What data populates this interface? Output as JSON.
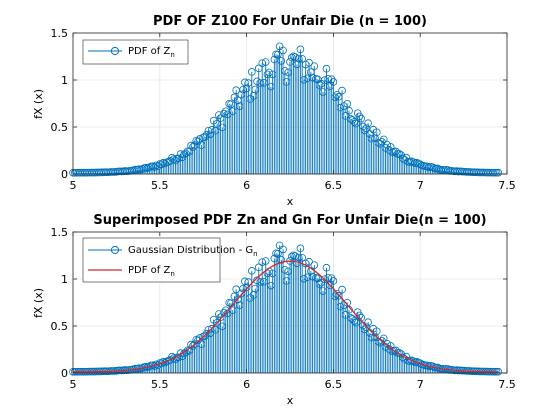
{
  "figure": {
    "background": "#ffffff"
  },
  "colors": {
    "stem": "#0072bd",
    "curve": "#d62728",
    "axis": "#262626",
    "grid": "#e6e6e6"
  },
  "chart_data": [
    {
      "type": "stem",
      "title": "PDF OF Z100 For Unfair Die (n = 100)",
      "xlabel": "x",
      "ylabel": "fX (x)",
      "xlim": [
        5,
        7.5
      ],
      "ylim": [
        0,
        1.5
      ],
      "xticks": [
        "5",
        "5.5",
        "6",
        "6.5",
        "7",
        "7.5"
      ],
      "yticks": [
        "0",
        "0.5",
        "1",
        "1.5"
      ],
      "grid": true,
      "legend_position": "top-left",
      "legend": [
        {
          "marker": "stem-circle",
          "text": "PDF of Z",
          "sub": "n"
        }
      ],
      "gaussian": {
        "mean": 6.25,
        "sd": 0.33,
        "peak": 1.18
      },
      "samples": {
        "x_start": 5.0,
        "x_end": 7.45,
        "step": 0.01
      }
    },
    {
      "type": "stem+line",
      "title": "Superimposed PDF Zn and Gn For Unfair Die(n = 100)",
      "xlabel": "x",
      "ylabel": "fX (x)",
      "xlim": [
        5,
        7.5
      ],
      "ylim": [
        0,
        1.5
      ],
      "xticks": [
        "5",
        "5.5",
        "6",
        "6.5",
        "7",
        "7.5"
      ],
      "yticks": [
        "0",
        "0.5",
        "1",
        "1.5"
      ],
      "grid": true,
      "legend_position": "top-left",
      "legend": [
        {
          "marker": "stem-circle",
          "text": "Gaussian Distribution - G",
          "sub": "n"
        },
        {
          "marker": "line",
          "text": "PDF of Z",
          "sub": "n"
        }
      ],
      "gaussian": {
        "mean": 6.25,
        "sd": 0.33,
        "peak": 1.18
      },
      "samples": {
        "x_start": 5.0,
        "x_end": 7.45,
        "step": 0.01
      }
    }
  ]
}
